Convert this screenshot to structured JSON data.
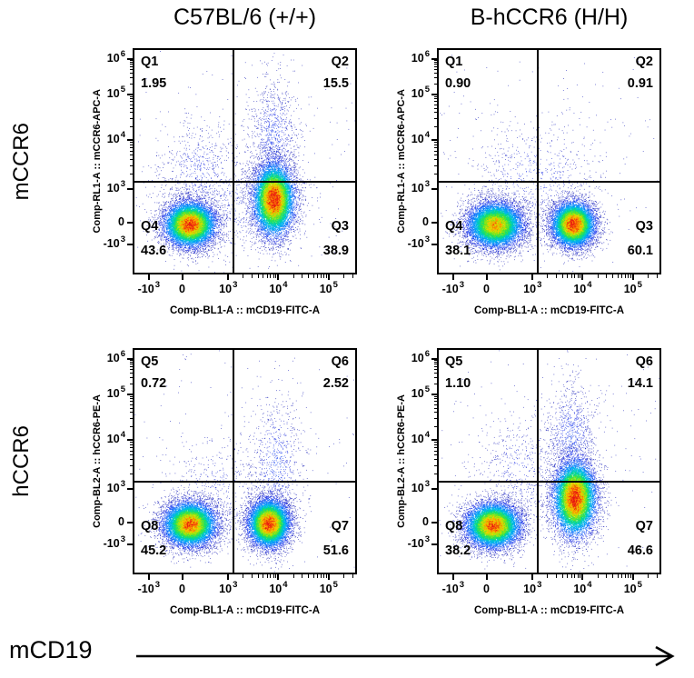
{
  "figure": {
    "columns": [
      "C57BL/6 (+/+)",
      "B-hCCR6 (H/H)"
    ],
    "rows": [
      "mCCR6",
      "hCCR6"
    ],
    "bottom_arrow_label": "mCD19"
  },
  "axes": {
    "x_label": "Comp-BL1-A :: mCD19-FITC-A",
    "y_labels": [
      "Comp-RL1-A :: mCCR6-APC-A",
      "Comp-BL2-A :: hCCR6-PE-A"
    ],
    "x_ticks": [
      {
        "t": "-10",
        "s": "3",
        "f": 0.065
      },
      {
        "t": "0",
        "s": "",
        "f": 0.218
      },
      {
        "t": "10",
        "s": "3",
        "f": 0.425
      },
      {
        "t": "10",
        "s": "4",
        "f": 0.652
      },
      {
        "t": "10",
        "s": "5",
        "f": 0.88
      }
    ],
    "y_ticks": [
      {
        "t": "10",
        "s": "6",
        "f": 0.04
      },
      {
        "t": "10",
        "s": "5",
        "f": 0.2
      },
      {
        "t": "10",
        "s": "4",
        "f": 0.405
      },
      {
        "t": "10",
        "s": "3",
        "f": 0.625
      },
      {
        "t": "0",
        "s": "",
        "f": 0.775
      },
      {
        "t": "-10",
        "s": "3",
        "f": 0.875
      }
    ]
  },
  "chart_data": [
    {
      "type": "scatter",
      "style": "flow-cytometry-pseudocolor-density",
      "column": "C57BL/6 (+/+)",
      "row": "mCCR6",
      "xlabel": "Comp-BL1-A :: mCD19-FITC-A",
      "ylabel": "Comp-RL1-A :: mCCR6-APC-A",
      "x_range": [
        "-10^3",
        "10^5"
      ],
      "y_range": [
        "-10^3",
        "10^6"
      ],
      "gate": {
        "x": 0.447,
        "y": 0.592
      },
      "quadrants": [
        {
          "name": "Q1",
          "value": "1.95",
          "pos": "tl"
        },
        {
          "name": "Q2",
          "value": "15.5",
          "pos": "tr"
        },
        {
          "name": "Q3",
          "value": "38.9",
          "pos": "br"
        },
        {
          "name": "Q4",
          "value": "43.6",
          "pos": "bl"
        }
      ],
      "clusters": [
        {
          "desc": "mCD19- mCCR6- B cells",
          "cx": 0.25,
          "cy": 0.782,
          "sx": 0.06,
          "sy": 0.052,
          "n": 9500,
          "peak": 0.98
        },
        {
          "desc": "mCD19+ mCCR6 low-pos",
          "cx": 0.63,
          "cy": 0.67,
          "sx": 0.048,
          "sy": 0.085,
          "n": 9200,
          "peak": 1.0
        },
        {
          "desc": "mCD19+ high spray",
          "cx": 0.63,
          "cy": 0.4,
          "sx": 0.055,
          "sy": 0.14,
          "n": 1000,
          "peak": 0.12
        },
        {
          "desc": "left spray",
          "cx": 0.3,
          "cy": 0.55,
          "sx": 0.1,
          "sy": 0.12,
          "n": 600,
          "peak": 0.1
        },
        {
          "desc": "bridge",
          "cx": 0.44,
          "cy": 0.7,
          "sx": 0.2,
          "sy": 0.12,
          "n": 600,
          "peak": 0.1
        },
        {
          "desc": "sparse",
          "cx": 0.5,
          "cy": 0.42,
          "sx": 0.42,
          "sy": 0.3,
          "n": 260,
          "peak": 0.05
        }
      ]
    },
    {
      "type": "scatter",
      "style": "flow-cytometry-pseudocolor-density",
      "column": "B-hCCR6 (H/H)",
      "row": "mCCR6",
      "xlabel": "Comp-BL1-A :: mCD19-FITC-A",
      "ylabel": "Comp-RL1-A :: mCCR6-APC-A",
      "x_range": [
        "-10^3",
        "10^5"
      ],
      "y_range": [
        "-10^3",
        "10^6"
      ],
      "gate": {
        "x": 0.447,
        "y": 0.592
      },
      "quadrants": [
        {
          "name": "Q1",
          "value": "0.90",
          "pos": "tl"
        },
        {
          "name": "Q2",
          "value": "0.91",
          "pos": "tr"
        },
        {
          "name": "Q3",
          "value": "60.1",
          "pos": "br"
        },
        {
          "name": "Q4",
          "value": "38.1",
          "pos": "bl"
        }
      ],
      "clusters": [
        {
          "desc": "mCD19- cells",
          "cx": 0.255,
          "cy": 0.785,
          "sx": 0.065,
          "sy": 0.053,
          "n": 9500,
          "peak": 0.82
        },
        {
          "desc": "mCD19+ mCCR6-",
          "cx": 0.608,
          "cy": 0.782,
          "sx": 0.05,
          "sy": 0.052,
          "n": 9200,
          "peak": 1.0
        },
        {
          "desc": "mid spray",
          "cx": 0.43,
          "cy": 0.57,
          "sx": 0.15,
          "sy": 0.13,
          "n": 700,
          "peak": 0.1
        },
        {
          "desc": "sparse",
          "cx": 0.5,
          "cy": 0.4,
          "sx": 0.42,
          "sy": 0.3,
          "n": 220,
          "peak": 0.05
        }
      ]
    },
    {
      "type": "scatter",
      "style": "flow-cytometry-pseudocolor-density",
      "column": "C57BL/6 (+/+)",
      "row": "hCCR6",
      "xlabel": "Comp-BL1-A :: mCD19-FITC-A",
      "ylabel": "Comp-BL2-A :: hCCR6-PE-A",
      "x_range": [
        "-10^3",
        "10^5"
      ],
      "y_range": [
        "-10^3",
        "10^6"
      ],
      "gate": {
        "x": 0.447,
        "y": 0.592
      },
      "quadrants": [
        {
          "name": "Q5",
          "value": "0.72",
          "pos": "tl"
        },
        {
          "name": "Q6",
          "value": "2.52",
          "pos": "tr"
        },
        {
          "name": "Q7",
          "value": "51.6",
          "pos": "br"
        },
        {
          "name": "Q8",
          "value": "45.2",
          "pos": "bl"
        }
      ],
      "clusters": [
        {
          "desc": "mCD19- hCCR6-",
          "cx": 0.25,
          "cy": 0.782,
          "sx": 0.062,
          "sy": 0.052,
          "n": 9500,
          "peak": 0.92
        },
        {
          "desc": "mCD19+ hCCR6-",
          "cx": 0.608,
          "cy": 0.778,
          "sx": 0.048,
          "sy": 0.055,
          "n": 9200,
          "peak": 1.0
        },
        {
          "desc": "spray above positive",
          "cx": 0.64,
          "cy": 0.52,
          "sx": 0.06,
          "sy": 0.16,
          "n": 800,
          "peak": 0.13
        },
        {
          "desc": "mid spray",
          "cx": 0.38,
          "cy": 0.6,
          "sx": 0.13,
          "sy": 0.11,
          "n": 400,
          "peak": 0.08
        },
        {
          "desc": "sparse",
          "cx": 0.5,
          "cy": 0.42,
          "sx": 0.42,
          "sy": 0.3,
          "n": 220,
          "peak": 0.05
        }
      ]
    },
    {
      "type": "scatter",
      "style": "flow-cytometry-pseudocolor-density",
      "column": "B-hCCR6 (H/H)",
      "row": "hCCR6",
      "xlabel": "Comp-BL1-A :: mCD19-FITC-A",
      "ylabel": "Comp-BL2-A :: hCCR6-PE-A",
      "x_range": [
        "-10^3",
        "10^5"
      ],
      "y_range": [
        "-10^3",
        "10^6"
      ],
      "gate": {
        "x": 0.447,
        "y": 0.592
      },
      "quadrants": [
        {
          "name": "Q5",
          "value": "1.10",
          "pos": "tl"
        },
        {
          "name": "Q6",
          "value": "14.1",
          "pos": "tr"
        },
        {
          "name": "Q7",
          "value": "46.6",
          "pos": "br"
        },
        {
          "name": "Q8",
          "value": "38.2",
          "pos": "bl"
        }
      ],
      "clusters": [
        {
          "desc": "mCD19- hCCR6-",
          "cx": 0.245,
          "cy": 0.787,
          "sx": 0.064,
          "sy": 0.052,
          "n": 9500,
          "peak": 0.93
        },
        {
          "desc": "mCD19+ hCCR6 low-pos",
          "cx": 0.615,
          "cy": 0.665,
          "sx": 0.05,
          "sy": 0.088,
          "n": 9500,
          "peak": 1.0
        },
        {
          "desc": "hCCR6 high spray",
          "cx": 0.6,
          "cy": 0.4,
          "sx": 0.06,
          "sy": 0.13,
          "n": 1000,
          "peak": 0.13
        },
        {
          "desc": "left spray",
          "cx": 0.36,
          "cy": 0.54,
          "sx": 0.1,
          "sy": 0.12,
          "n": 500,
          "peak": 0.09
        },
        {
          "desc": "sparse",
          "cx": 0.5,
          "cy": 0.42,
          "sx": 0.42,
          "sy": 0.3,
          "n": 260,
          "peak": 0.05
        }
      ]
    }
  ]
}
